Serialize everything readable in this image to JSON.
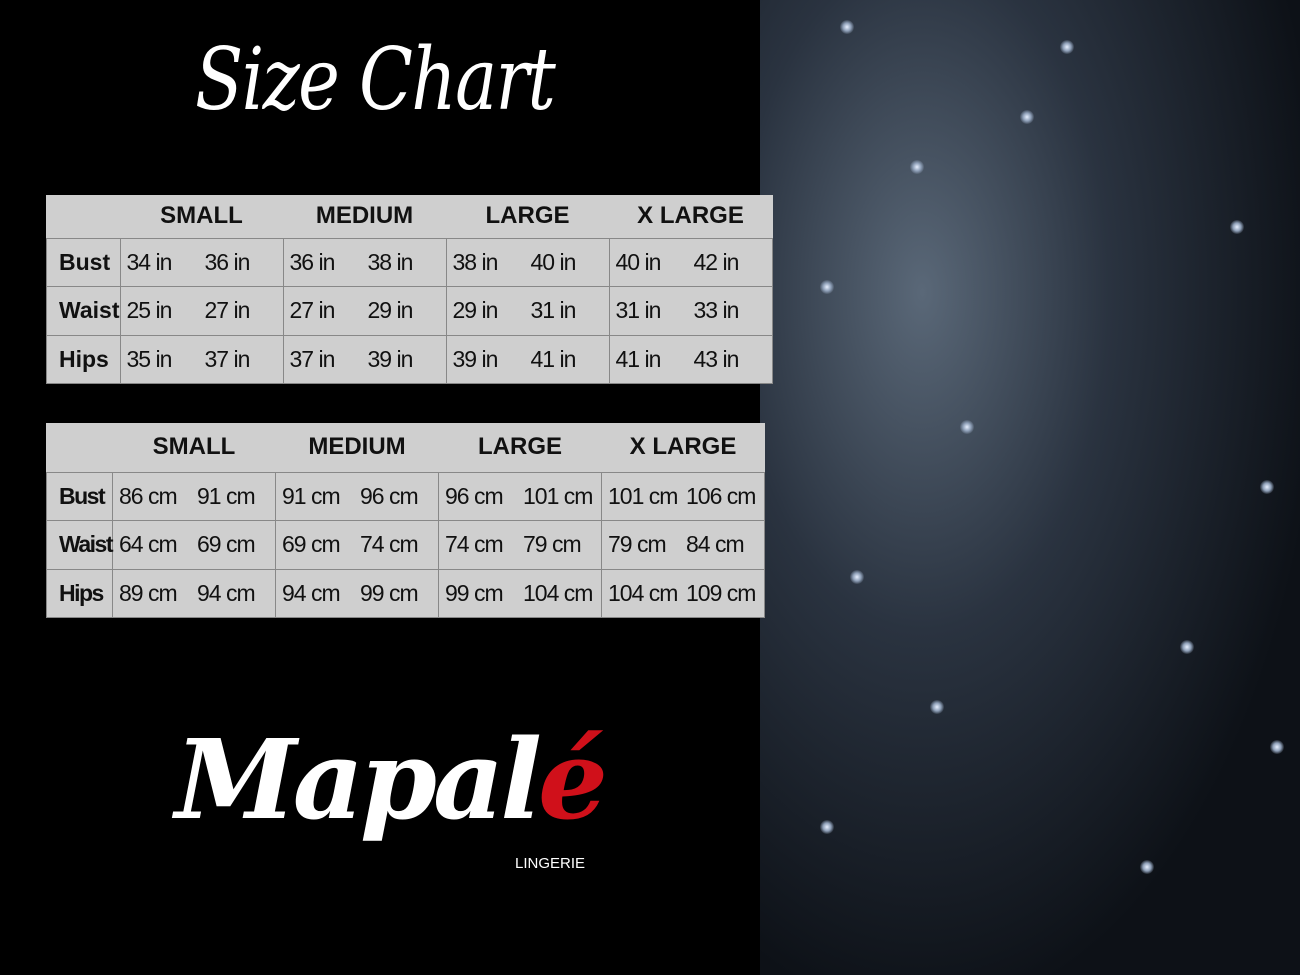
{
  "title": "Size Chart",
  "sizes": [
    "SMALL",
    "MEDIUM",
    "LARGE",
    "X LARGE"
  ],
  "inches": [
    {
      "label": "Bust",
      "values": [
        "34 in",
        "36 in",
        "36 in",
        "38 in",
        "38 in",
        "40 in",
        "40 in",
        "42 in"
      ]
    },
    {
      "label": "Waist",
      "values": [
        "25 in",
        "27 in",
        "27 in",
        "29 in",
        "29 in",
        "31 in",
        "31 in",
        "33 in"
      ]
    },
    {
      "label": "Hips",
      "values": [
        "35 in",
        "37 in",
        "37 in",
        "39 in",
        "39 in",
        "41 in",
        "41 in",
        "43 in"
      ]
    }
  ],
  "cm": [
    {
      "label": "Bust",
      "values": [
        "86 cm",
        "91 cm",
        "91 cm",
        "96 cm",
        "96 cm",
        "101 cm",
        "101 cm",
        "106 cm"
      ]
    },
    {
      "label": "Waist",
      "values": [
        "64 cm",
        "69 cm",
        "69 cm",
        "74 cm",
        "74 cm",
        "79  cm",
        "79 cm",
        "84 cm"
      ]
    },
    {
      "label": "Hips",
      "values": [
        "89 cm",
        "94 cm",
        "94 cm",
        "99 cm",
        "99 cm",
        "104 cm",
        "104 cm",
        "109 cm"
      ]
    }
  ],
  "logo": {
    "text": "Mapal",
    "accent": "é",
    "sub": "LINGERIE",
    "accent_color": "#d0101a"
  }
}
